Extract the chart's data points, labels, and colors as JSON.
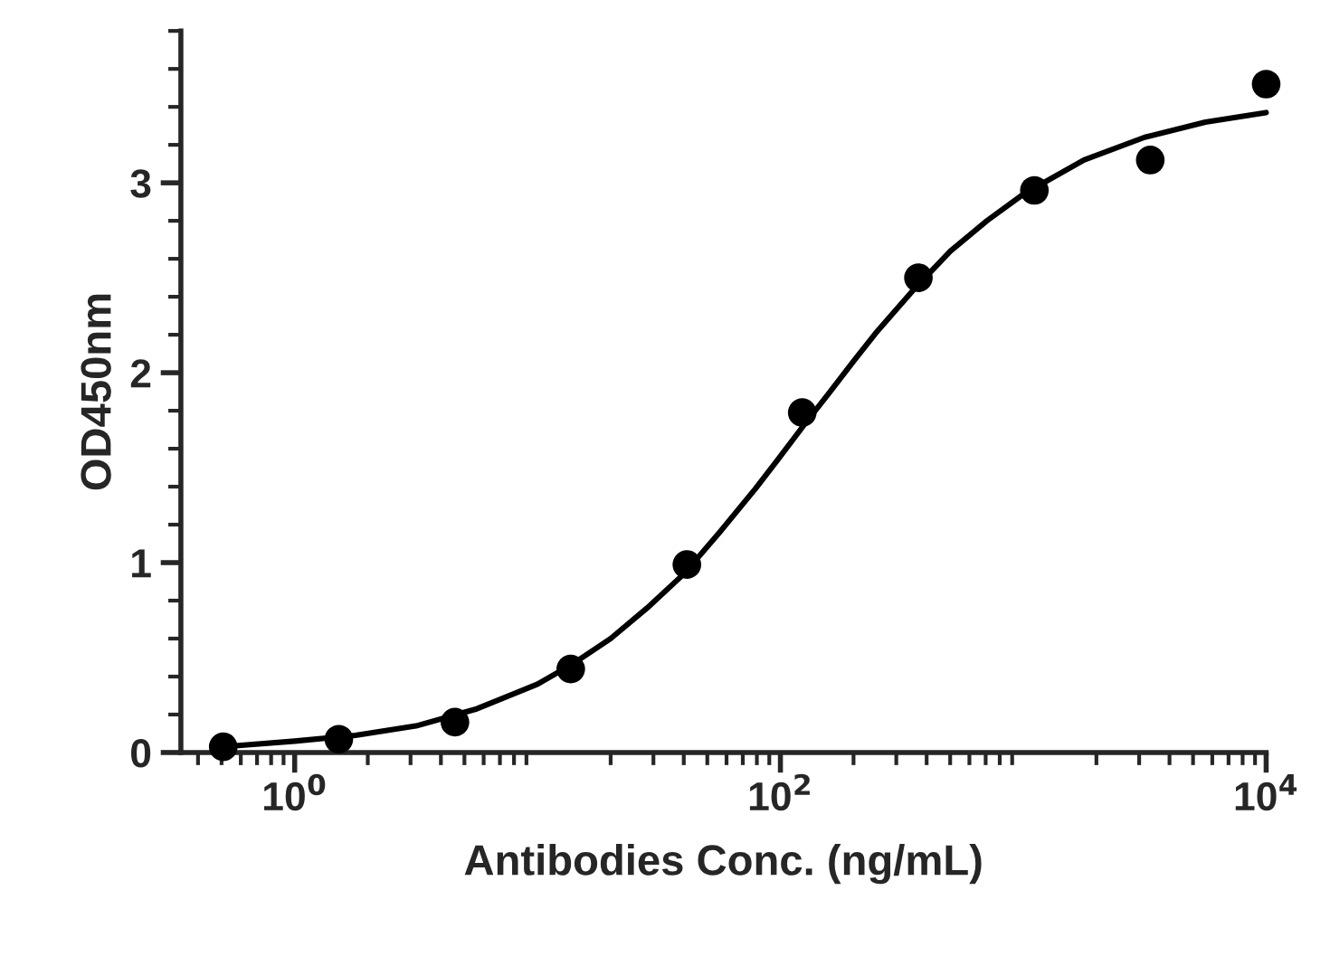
{
  "chart_data": {
    "type": "scatter",
    "xlabel": "Antibodies Conc. (ng/mL)",
    "ylabel": "OD450nm",
    "log": "x",
    "xlim": [
      0.34,
      10000
    ],
    "xticks": [
      {
        "value": 1,
        "label": "10$^{0}$"
      },
      {
        "value": 100,
        "label": "10$^{2}$"
      },
      {
        "value": 10000,
        "label": "10$^{4}$"
      }
    ],
    "ylim": [
      0,
      3.8
    ],
    "yticks": [
      0,
      1,
      2,
      3
    ],
    "grid": false,
    "legend": false,
    "series": [
      {
        "marker": "circle",
        "color": "#000000",
        "x": [
          0.508,
          1.52,
          4.57,
          13.7,
          41.2,
          123,
          370,
          1111,
          3333,
          10000
        ],
        "values": [
          0.03,
          0.07,
          0.16,
          0.44,
          0.99,
          1.79,
          2.5,
          2.96,
          3.12,
          3.52
        ]
      },
      {
        "type": "line",
        "marker": "none",
        "line_style": "solid",
        "color": "#000000",
        "x": [
          0.5,
          1,
          1.78,
          3.16,
          5.62,
          10,
          14.1,
          20,
          28.2,
          40,
          56.2,
          79,
          100,
          126,
          158,
          200,
          251,
          355,
          501,
          708,
          1000,
          1778,
          3162,
          5623,
          10000
        ],
        "values": [
          0.03,
          0.06,
          0.09,
          0.14,
          0.23,
          0.36,
          0.47,
          0.6,
          0.76,
          0.94,
          1.16,
          1.39,
          1.56,
          1.73,
          1.89,
          2.06,
          2.22,
          2.44,
          2.64,
          2.8,
          2.94,
          3.12,
          3.24,
          3.32,
          3.37
        ]
      }
    ]
  }
}
